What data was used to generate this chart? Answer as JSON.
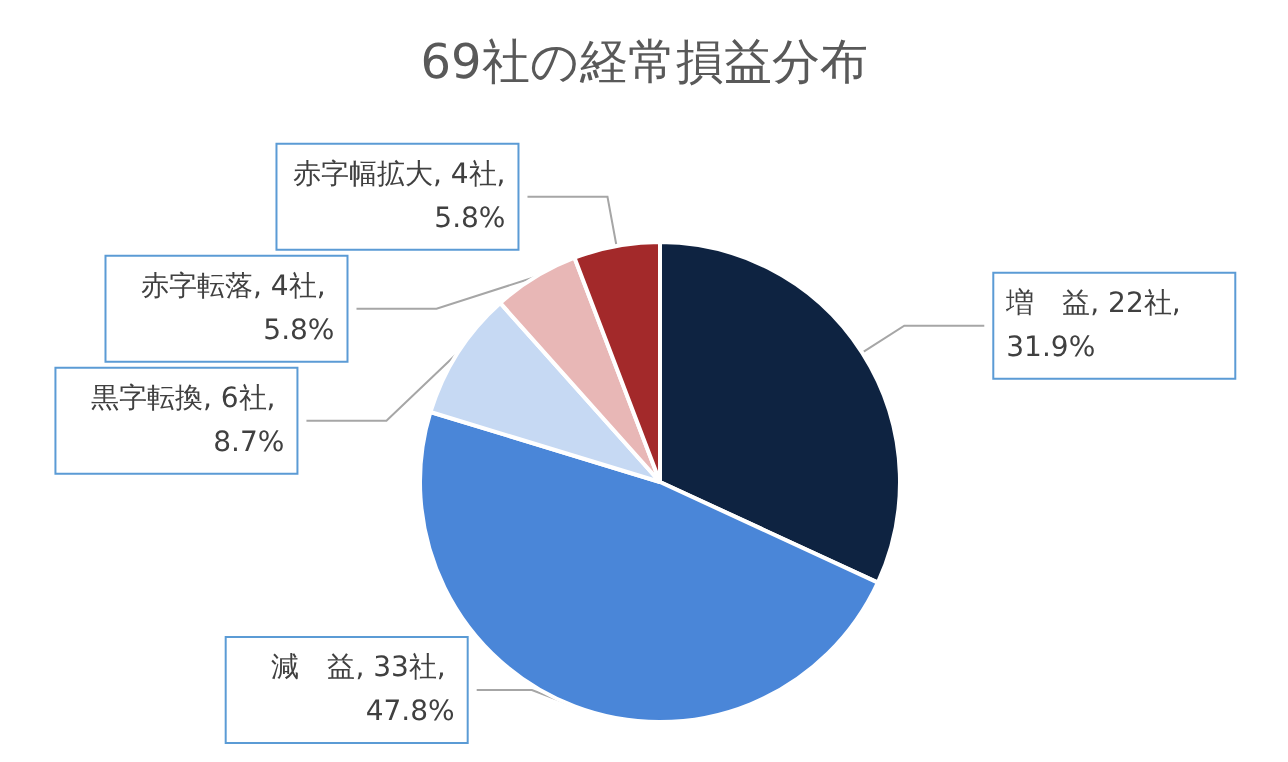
{
  "chart_data": {
    "type": "pie",
    "title": "69社の経常損益分布",
    "categories": [
      "増　益",
      "減　益",
      "黒字転換",
      "赤字転落",
      "赤字幅拡大"
    ],
    "values": [
      22,
      33,
      6,
      4,
      4
    ],
    "colors": [
      "#0e2341",
      "#4a86d8",
      "#c6d9f3",
      "#e8b7b6",
      "#a3292a"
    ],
    "value_labels": [
      "22社, 31.9%",
      "33社, 47.8%",
      "6社, 8.7%",
      "4社, 5.8%",
      "4社, 5.8%"
    ],
    "legend": false
  }
}
